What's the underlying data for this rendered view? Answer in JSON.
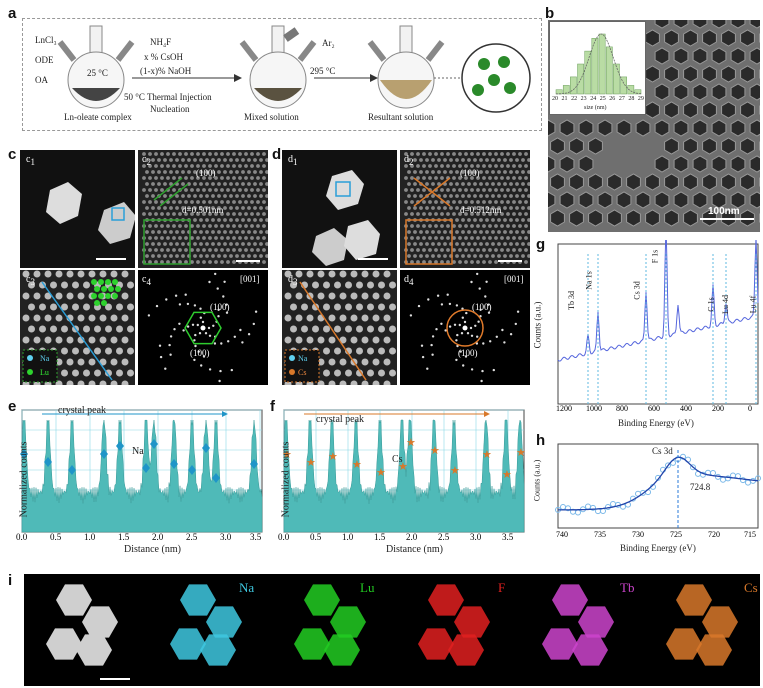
{
  "panel_labels": {
    "a": "a",
    "b": "b",
    "c": "c",
    "d": "d",
    "e": "e",
    "f": "f",
    "g": "g",
    "h": "h",
    "i": "i"
  },
  "a": {
    "reagents": [
      "LnCl₃",
      "ODE",
      "OA"
    ],
    "flask1_temp": "25 °C",
    "flask1_caption": "Ln-oleate complex",
    "arrow1_top": [
      "NH₄F",
      "x % CsOH",
      "(1-x)% NaOH"
    ],
    "arrow1_bottom": [
      "50 °C Thermal Injection",
      "Nucleation"
    ],
    "gas": "Ar₂",
    "flask2_caption": "Mixed solution",
    "arrow2_top": "295 °C",
    "flask3_caption": "Resultant solution"
  },
  "b": {
    "hist_ticks": [
      "20",
      "21",
      "22",
      "23",
      "24",
      "25",
      "26",
      "27",
      "28",
      "29"
    ],
    "hist_xlabel": "size (nm)",
    "hist_values": [
      1,
      2,
      4,
      7,
      10,
      13,
      14,
      11,
      7,
      4,
      2,
      1
    ],
    "scale": "100nm"
  },
  "c": {
    "c1": "1",
    "c2": "2",
    "c3": "3",
    "c4": "4",
    "plane": "(100)",
    "dspacing": "d=0.501nm",
    "legend_na": "Na",
    "legend_lu": "Lu",
    "zone": "[001]",
    "fft1": "(100)",
    "fft2": "(100)"
  },
  "d": {
    "d1": "1",
    "d2": "2",
    "d3": "3",
    "d4": "4",
    "plane": "(100)",
    "dspacing": "d=0.512nm",
    "legend_na": "Na",
    "legend_cs": "Cs",
    "zone": "[001]",
    "fft1": "(100)",
    "fft2": "(100)"
  },
  "e": {
    "annotation": "crystal peak",
    "element": "Na",
    "ylabel": "Normalized counts",
    "xlabel": "Distance (nm)",
    "xticks": [
      "0.0",
      "0.5",
      "1.0",
      "1.5",
      "2.0",
      "2.5",
      "3.0",
      "3.5"
    ]
  },
  "f": {
    "annotation": "crystal peak",
    "element": "Cs",
    "ylabel": "Normalized counts",
    "xlabel": "Distance (nm)",
    "xticks": [
      "0.0",
      "0.5",
      "1.0",
      "1.5",
      "2.0",
      "2.5",
      "3.0",
      "3.5"
    ]
  },
  "g": {
    "ylabel": "Counts (a.u.)",
    "xlabel": "Binding Energy (eV)",
    "xticks": [
      "1200",
      "1000",
      "800",
      "600",
      "400",
      "200",
      "0"
    ],
    "peaks": [
      "Tb 3d",
      "Na 1s",
      "Cs 3d",
      "F 1s",
      "C 1s",
      "Lu 4d",
      "Lu 4f"
    ]
  },
  "h": {
    "ylabel": "Counts (a.u.)",
    "xlabel": "Binding Energy (eV)",
    "xticks": [
      "740",
      "735",
      "730",
      "725",
      "720",
      "715"
    ],
    "peak": "Cs 3d",
    "value": "724.8"
  },
  "i": {
    "maps": [
      {
        "label": "Na",
        "color": "#3ec8e0"
      },
      {
        "label": "Lu",
        "color": "#22cc22"
      },
      {
        "label": "F",
        "color": "#e02020"
      },
      {
        "label": "Tb",
        "color": "#cc44cc"
      },
      {
        "label": "Cs",
        "color": "#d8782a"
      }
    ]
  }
}
